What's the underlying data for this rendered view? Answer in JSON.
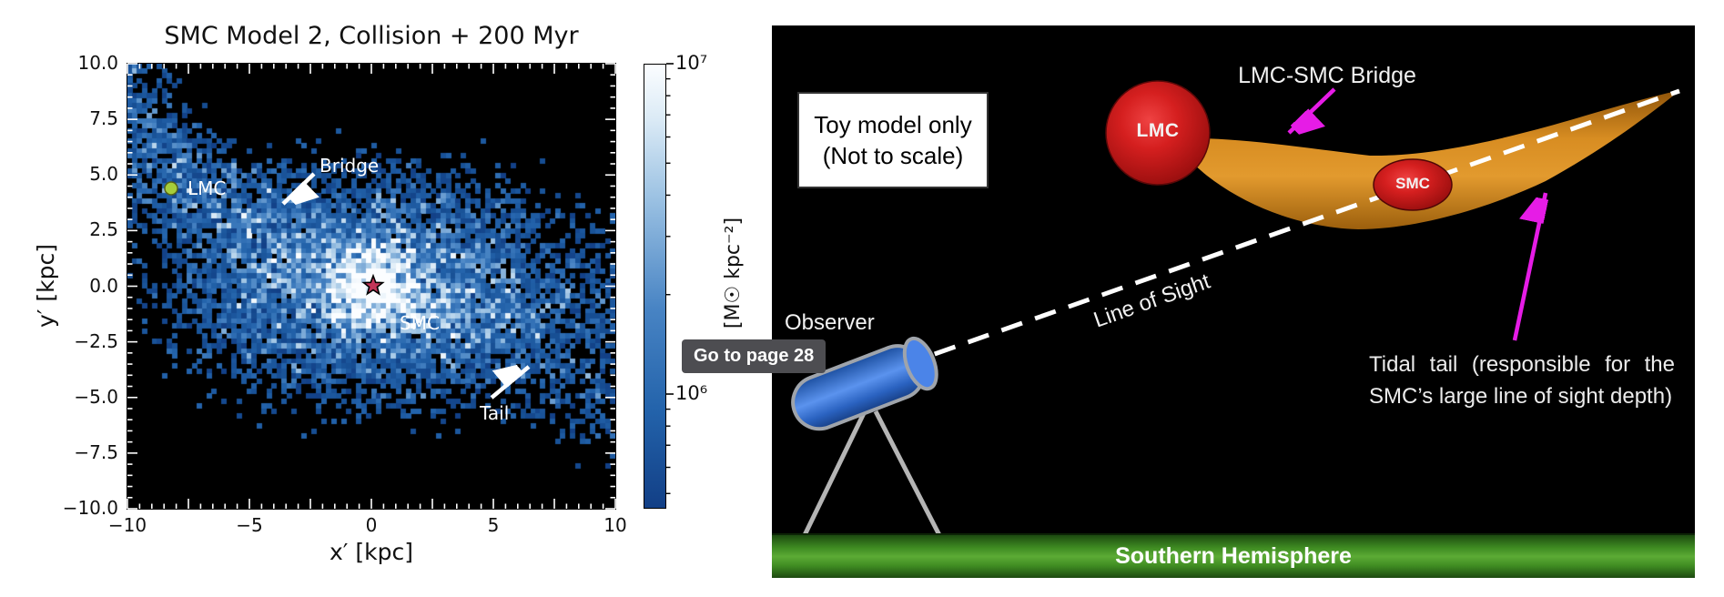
{
  "left_panel": {
    "title": "SMC Model 2, Collision + 200 Myr",
    "xlabel": "x′ [kpc]",
    "ylabel": "y′ [kpc]",
    "x_ticks": [
      {
        "v": -10,
        "label": "−10"
      },
      {
        "v": -5,
        "label": "−5"
      },
      {
        "v": 0,
        "label": "0"
      },
      {
        "v": 5,
        "label": "5"
      },
      {
        "v": 10,
        "label": "10"
      }
    ],
    "y_ticks": [
      {
        "v": 10,
        "label": "10.0"
      },
      {
        "v": 7.5,
        "label": "7.5"
      },
      {
        "v": 5,
        "label": "5.0"
      },
      {
        "v": 2.5,
        "label": "2.5"
      },
      {
        "v": 0,
        "label": "0.0"
      },
      {
        "v": -2.5,
        "label": "−2.5"
      },
      {
        "v": -5,
        "label": "−5.0"
      },
      {
        "v": -7.5,
        "label": "−7.5"
      },
      {
        "v": -10,
        "label": "−10.0"
      }
    ],
    "annotations": {
      "bridge": "Bridge",
      "lmc": "LMC",
      "smc": "SMC",
      "tail": "Tail"
    },
    "colorbar": {
      "top_label": "10⁷",
      "bottom_label": "10⁶",
      "unit": "[M☉ kpc⁻²]"
    }
  },
  "tooltip": {
    "text": "Go to page 28"
  },
  "right_panel": {
    "note_line1": "Toy model only",
    "note_line2": "(Not to scale)",
    "lmc_label": "LMC",
    "smc_label": "SMC",
    "bridge_label": "LMC-SMC Bridge",
    "observer_label": "Observer",
    "line_of_sight_label": "Line of Sight",
    "tidal_text": "Tidal tail (responsible for the SMC’s large line of sight depth)",
    "hemisphere_label": "Southern Hemisphere",
    "colors": {
      "magenta_arrow": "#e61ce6",
      "bridge_orange": "#d88d22",
      "galaxy_red": "#c01818",
      "ground_green": "#3f8c22"
    }
  },
  "chart_data": {
    "type": "heatmap",
    "title": "SMC Model 2, Collision + 200 Myr",
    "xlabel": "x′ [kpc]",
    "ylabel": "y′ [kpc]",
    "xlim": [
      -10,
      10
    ],
    "ylim": [
      -10,
      10
    ],
    "xticks": [
      -10,
      -5,
      0,
      5,
      10
    ],
    "yticks": [
      10,
      7.5,
      5,
      2.5,
      0,
      -2.5,
      -5,
      -7.5,
      -10
    ],
    "grid": false,
    "colorbar": {
      "scale": "log",
      "range": [
        1000000,
        10000000
      ],
      "tick_labels": [
        "10⁶",
        "10⁷"
      ],
      "unit": "[M☉ kpc⁻²]",
      "colormap": "black → dark blue → light blue → white (increasing surface density)"
    },
    "features": [
      {
        "name": "SMC center (star marker)",
        "x": 0,
        "y": 0,
        "peak_density": 10000000
      },
      {
        "name": "LMC position (green dot)",
        "x": -8.2,
        "y": 4.4
      },
      {
        "name": "Bridge (dense stream toward upper-left, arrow at)",
        "x": -3.8,
        "y": 3.5,
        "density": 1000000
      },
      {
        "name": "Tail (sparse debris lower-right, arrow at)",
        "x": 6.5,
        "y": -3.5,
        "density": 300000
      }
    ]
  }
}
